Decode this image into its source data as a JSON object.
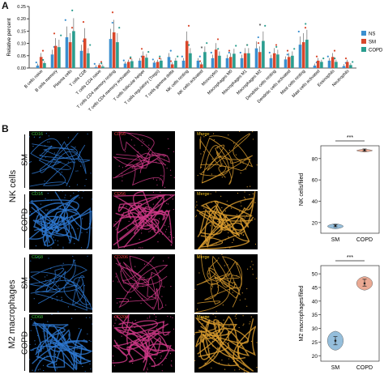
{
  "panel_a": {
    "letter": "A"
  },
  "panel_b": {
    "letter": "B"
  },
  "chart_data": [
    {
      "type": "bar",
      "ylabel": "Relative percent",
      "ylim": [
        0,
        0.25
      ],
      "yticks": [
        "0.25",
        "0.20",
        "0.15",
        "0.10",
        "0.05",
        "0.00"
      ],
      "categories": [
        "B cells naive",
        "B cells memory",
        "Plasma cells",
        "T cells CD8",
        "T cells CD4 naive",
        "T cells CD4 memory resting",
        "T cells CD4 memory activated",
        "T cells follicular helper",
        "T cells regulatory (Tregs)",
        "T cells gamma delta",
        "NK cells resting",
        "NK cells activated",
        "Monocytes",
        "Macrophages M0",
        "Macrophages M1",
        "Macrophages M2",
        "Dendritic cells resting",
        "Dendritic cells activated",
        "Mast cells resting",
        "Mast cells activated",
        "Eosinophils",
        "Neutrophils"
      ],
      "series": [
        {
          "name": "NS",
          "color": "#3b8fcf",
          "values": [
            0.01,
            0.055,
            0.125,
            0.07,
            0.004,
            0.118,
            0.018,
            0.03,
            0.022,
            0.045,
            0.03,
            0.03,
            0.04,
            0.04,
            0.04,
            0.08,
            0.04,
            0.035,
            0.095,
            0.01,
            0.03,
            0.008
          ]
        },
        {
          "name": "SM",
          "color": "#d9472b",
          "values": [
            0.045,
            0.09,
            0.105,
            0.12,
            0.012,
            0.145,
            0.025,
            0.05,
            0.025,
            0.015,
            0.11,
            0.015,
            0.075,
            0.045,
            0.06,
            0.065,
            0.06,
            0.045,
            0.105,
            0.03,
            0.045,
            0.025
          ]
        },
        {
          "name": "COPD",
          "color": "#2a9d8f",
          "values": [
            0.02,
            0.085,
            0.15,
            0.06,
            0.006,
            0.105,
            0.028,
            0.042,
            0.03,
            0.03,
            0.06,
            0.065,
            0.05,
            0.058,
            0.06,
            0.11,
            0.055,
            0.05,
            0.115,
            0.025,
            0.025,
            0.012
          ]
        }
      ],
      "annotations": [
        "*",
        "*"
      ],
      "legend_placement": "right"
    },
    {
      "type": "violin",
      "ylabel": "NK cells/filed",
      "categories": [
        "SM",
        "COPD"
      ],
      "series": [
        {
          "name": "SM",
          "color": "#8ab8d8",
          "values": [
            14,
            16,
            17,
            18,
            19
          ]
        },
        {
          "name": "COPD",
          "color": "#e8a088",
          "values": [
            86,
            87,
            88,
            89,
            89
          ]
        }
      ],
      "ylim": [
        10,
        92
      ],
      "yticks": [
        "80",
        "60",
        "40",
        "20"
      ],
      "annotation": "***"
    },
    {
      "type": "violin",
      "ylabel": "M2 macrophages/filed",
      "categories": [
        "SM",
        "COPD"
      ],
      "series": [
        {
          "name": "SM",
          "color": "#8ab8d8",
          "values": [
            22,
            24,
            25.5,
            27,
            29
          ]
        },
        {
          "name": "COPD",
          "color": "#e8a088",
          "values": [
            44,
            45.5,
            46.5,
            48,
            49
          ]
        }
      ],
      "ylim": [
        18,
        53
      ],
      "yticks": [
        "50",
        "45",
        "40",
        "35",
        "30",
        "25",
        "20"
      ],
      "annotation": "***"
    }
  ],
  "micrographs": {
    "group1": "NK cells",
    "group2": "M2 macrophages",
    "rows": [
      "SM",
      "COPD",
      "SM",
      "COPD"
    ],
    "cells": [
      [
        "CD16",
        "CD56",
        "Merge"
      ],
      [
        "CD16",
        "CD56",
        "Merge"
      ],
      [
        "CD68",
        "CD206",
        "Merge"
      ],
      [
        "CD68",
        "CD206",
        "Merge"
      ]
    ],
    "label_colors": [
      "#3dbf3d",
      "#e33c3c",
      "#f0c020"
    ],
    "stain_colors": [
      "#2e7bd6",
      "#d23a8a",
      "#e0a030"
    ]
  }
}
